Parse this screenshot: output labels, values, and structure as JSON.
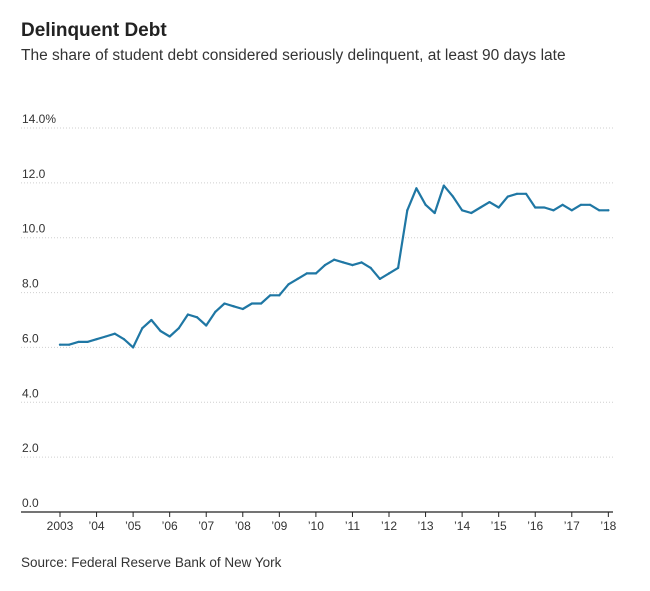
{
  "header": {
    "title": "Delinquent Debt",
    "subtitle": "The share of student debt considered seriously delinquent, at least 90 days late"
  },
  "footer": {
    "source": "Source: Federal Reserve Bank of New York"
  },
  "chart_data": {
    "type": "line",
    "title": "Delinquent Debt",
    "subtitle": "The share of student debt considered seriously delinquent, at least 90 days late",
    "xlabel": "",
    "ylabel": "",
    "ylim": [
      0,
      14
    ],
    "yticks": [
      0,
      2,
      4,
      6,
      8,
      10,
      12,
      14
    ],
    "ytick_labels": [
      "0.0",
      "2.0",
      "4.0",
      "6.0",
      "8.0",
      "10.0",
      "12.0",
      "14.0%"
    ],
    "xticks": [
      2003,
      2004,
      2005,
      2006,
      2007,
      2008,
      2009,
      2010,
      2011,
      2012,
      2013,
      2014,
      2015,
      2016,
      2017,
      2018
    ],
    "xtick_labels": [
      "2003",
      "’04",
      "’05",
      "’06",
      "’07",
      "’08",
      "’09",
      "’10",
      "’11",
      "’12",
      "’13",
      "’14",
      "’15",
      "’16",
      "’17",
      "’18"
    ],
    "xlim": [
      2003,
      2018.1
    ],
    "grid": true,
    "line_color": "#1f77a4",
    "series": [
      {
        "x": [
          2003.0,
          2003.25,
          2003.5,
          2003.75,
          2004.0,
          2004.25,
          2004.5,
          2004.75,
          2005.0,
          2005.25,
          2005.5,
          2005.75,
          2006.0,
          2006.25,
          2006.5,
          2006.75,
          2007.0,
          2007.25,
          2007.5,
          2007.75,
          2008.0,
          2008.25,
          2008.5,
          2008.75,
          2009.0,
          2009.25,
          2009.5,
          2009.75,
          2010.0,
          2010.25,
          2010.5,
          2010.75,
          2011.0,
          2011.25,
          2011.5,
          2011.75,
          2012.0,
          2012.25,
          2012.5,
          2012.75,
          2013.0,
          2013.25,
          2013.5,
          2013.75,
          2014.0,
          2014.25,
          2014.5,
          2014.75,
          2015.0,
          2015.25,
          2015.5,
          2015.75,
          2016.0,
          2016.25,
          2016.5,
          2016.75,
          2017.0,
          2017.25,
          2017.5,
          2017.75,
          2018.0
        ],
        "y": [
          6.1,
          6.1,
          6.2,
          6.2,
          6.3,
          6.4,
          6.5,
          6.3,
          6.0,
          6.7,
          7.0,
          6.6,
          6.4,
          6.7,
          7.2,
          7.1,
          6.8,
          7.3,
          7.6,
          7.5,
          7.4,
          7.6,
          7.6,
          7.9,
          7.9,
          8.3,
          8.5,
          8.7,
          8.7,
          9.0,
          9.2,
          9.1,
          9.0,
          9.1,
          8.9,
          8.5,
          8.7,
          8.9,
          11.0,
          11.8,
          11.2,
          10.9,
          11.9,
          11.5,
          11.0,
          10.9,
          11.1,
          11.3,
          11.1,
          11.5,
          11.6,
          11.6,
          11.1,
          11.1,
          11.0,
          11.2,
          11.0,
          11.2,
          11.2,
          11.0,
          11.0
        ]
      }
    ]
  }
}
